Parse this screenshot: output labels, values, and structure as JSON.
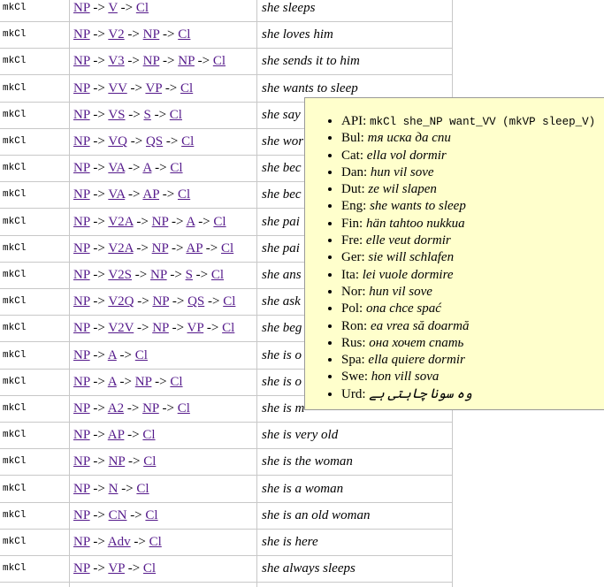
{
  "table": {
    "arrow": "->",
    "rows": [
      {
        "function": "mkCl",
        "type": [
          "NP",
          "V",
          "Cl"
        ],
        "example": "she sleeps"
      },
      {
        "function": "mkCl",
        "type": [
          "NP",
          "V2",
          "NP",
          "Cl"
        ],
        "example": "she loves him"
      },
      {
        "function": "mkCl",
        "type": [
          "NP",
          "V3",
          "NP",
          "NP",
          "Cl"
        ],
        "example": "she sends it to him"
      },
      {
        "function": "mkCl",
        "type": [
          "NP",
          "VV",
          "VP",
          "Cl"
        ],
        "example": "she wants to sleep"
      },
      {
        "function": "mkCl",
        "type": [
          "NP",
          "VS",
          "S",
          "Cl"
        ],
        "example": "she say"
      },
      {
        "function": "mkCl",
        "type": [
          "NP",
          "VQ",
          "QS",
          "Cl"
        ],
        "example": "she wor"
      },
      {
        "function": "mkCl",
        "type": [
          "NP",
          "VA",
          "A",
          "Cl"
        ],
        "example": "she bec"
      },
      {
        "function": "mkCl",
        "type": [
          "NP",
          "VA",
          "AP",
          "Cl"
        ],
        "example": "she bec"
      },
      {
        "function": "mkCl",
        "type": [
          "NP",
          "V2A",
          "NP",
          "A",
          "Cl"
        ],
        "example": "she pai"
      },
      {
        "function": "mkCl",
        "type": [
          "NP",
          "V2A",
          "NP",
          "AP",
          "Cl"
        ],
        "example": "she pai"
      },
      {
        "function": "mkCl",
        "type": [
          "NP",
          "V2S",
          "NP",
          "S",
          "Cl"
        ],
        "example": "she ans"
      },
      {
        "function": "mkCl",
        "type": [
          "NP",
          "V2Q",
          "NP",
          "QS",
          "Cl"
        ],
        "example": "she ask"
      },
      {
        "function": "mkCl",
        "type": [
          "NP",
          "V2V",
          "NP",
          "VP",
          "Cl"
        ],
        "example": "she beg"
      },
      {
        "function": "mkCl",
        "type": [
          "NP",
          "A",
          "Cl"
        ],
        "example": "she is o"
      },
      {
        "function": "mkCl",
        "type": [
          "NP",
          "A",
          "NP",
          "Cl"
        ],
        "example": "she is o"
      },
      {
        "function": "mkCl",
        "type": [
          "NP",
          "A2",
          "NP",
          "Cl"
        ],
        "example": "she is m"
      },
      {
        "function": "mkCl",
        "type": [
          "NP",
          "AP",
          "Cl"
        ],
        "example": "she is very old"
      },
      {
        "function": "mkCl",
        "type": [
          "NP",
          "NP",
          "Cl"
        ],
        "example": "she is the woman"
      },
      {
        "function": "mkCl",
        "type": [
          "NP",
          "N",
          "Cl"
        ],
        "example": "she is a woman"
      },
      {
        "function": "mkCl",
        "type": [
          "NP",
          "CN",
          "Cl"
        ],
        "example": "she is an old woman"
      },
      {
        "function": "mkCl",
        "type": [
          "NP",
          "Adv",
          "Cl"
        ],
        "example": "she is here"
      },
      {
        "function": "mkCl",
        "type": [
          "NP",
          "VP",
          "Cl"
        ],
        "example": "she always sleeps"
      }
    ]
  },
  "popup": {
    "items": [
      {
        "lang": "API:",
        "text": "mkCl she_NP want_VV (mkVP sleep_V)"
      },
      {
        "lang": "Bul:",
        "text": "тя иска да спи"
      },
      {
        "lang": "Cat:",
        "text": "ella vol dormir"
      },
      {
        "lang": "Dan:",
        "text": "hun vil sove"
      },
      {
        "lang": "Dut:",
        "text": "ze wil slapen"
      },
      {
        "lang": "Eng:",
        "text": "she wants to sleep"
      },
      {
        "lang": "Fin:",
        "text": "hän tahtoo nukkua"
      },
      {
        "lang": "Fre:",
        "text": "elle veut dormir"
      },
      {
        "lang": "Ger:",
        "text": "sie will schlafen"
      },
      {
        "lang": "Ita:",
        "text": "lei vuole dormire"
      },
      {
        "lang": "Nor:",
        "text": "hun vil sove"
      },
      {
        "lang": "Pol:",
        "text": "ona chce spać"
      },
      {
        "lang": "Ron:",
        "text": "ea vrea să doarmă"
      },
      {
        "lang": "Rus:",
        "text": "она хочет спать"
      },
      {
        "lang": "Spa:",
        "text": "ella quiere dormir"
      },
      {
        "lang": "Swe:",
        "text": "hon vill sova"
      },
      {
        "lang": "Urd:",
        "text": "وہ سونا چاہتی ہے"
      }
    ]
  }
}
